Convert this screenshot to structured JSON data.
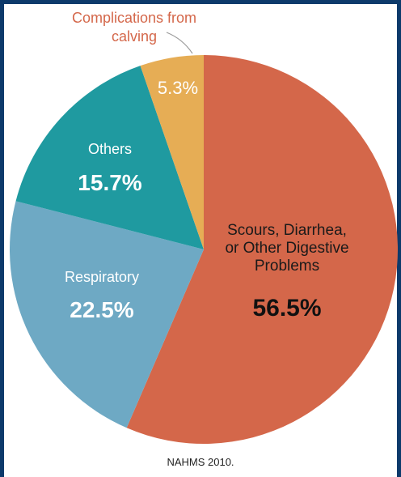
{
  "chart_data": {
    "type": "pie",
    "slices": [
      {
        "label_lines": [
          "Scours, Diarrhea,",
          "or Other Digestive",
          "Problems"
        ],
        "value": 56.5,
        "value_label": "56.5%",
        "color": "#d4674a"
      },
      {
        "label_lines": [
          "Respiratory"
        ],
        "value": 22.5,
        "value_label": "22.5%",
        "color": "#6ea9c4"
      },
      {
        "label_lines": [
          "Others"
        ],
        "value": 15.7,
        "value_label": "15.7%",
        "color": "#1f9aa0"
      },
      {
        "label_lines": [
          "Complications from",
          "calving"
        ],
        "value": 5.3,
        "value_label": "5.3%",
        "color": "#e6ad55"
      }
    ],
    "start": "top",
    "direction": "clockwise",
    "source": "NAHMS 2010."
  }
}
